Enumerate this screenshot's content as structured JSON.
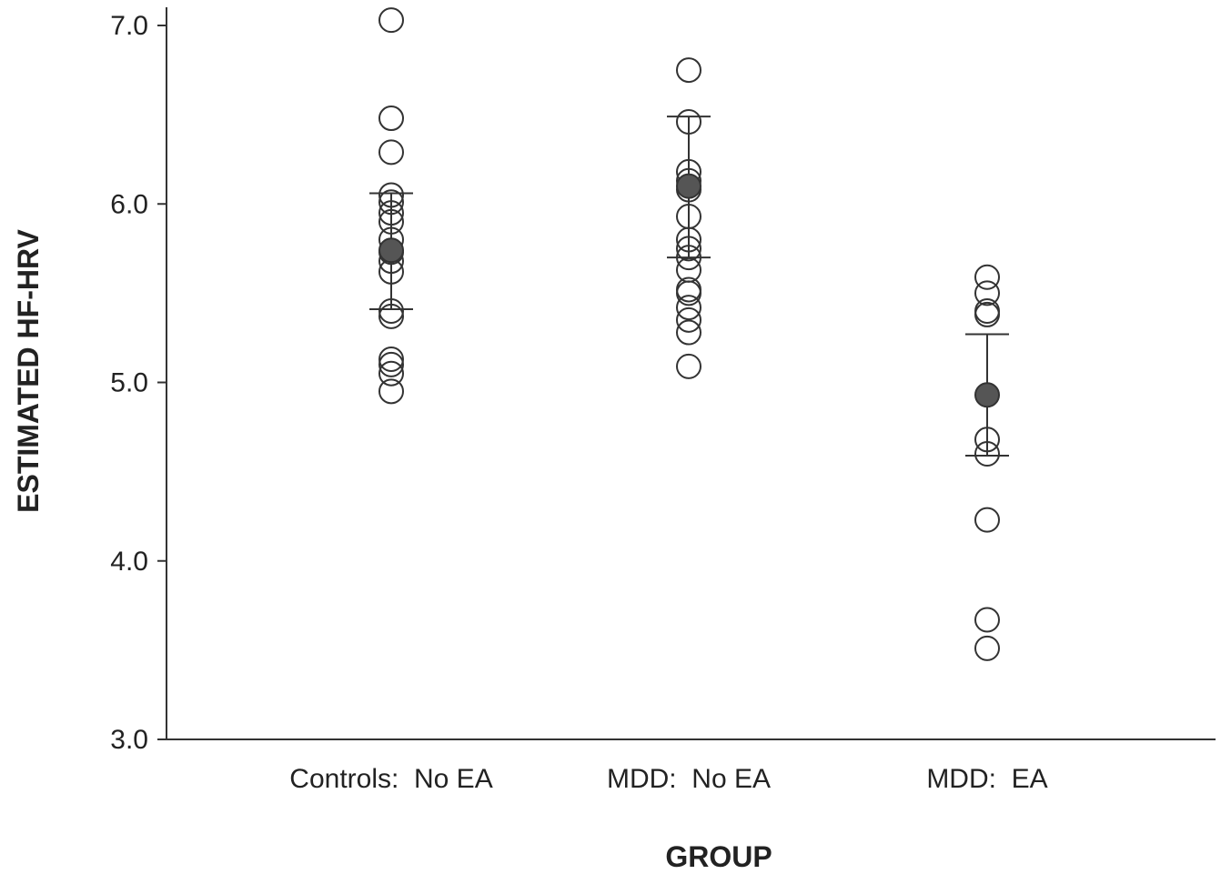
{
  "chart_data": {
    "type": "scatter",
    "title": "",
    "xlabel": "GROUP",
    "ylabel": "ESTIMATED HF-HRV",
    "ylim": [
      3.0,
      7.0
    ],
    "yticks": [
      "3.0",
      "4.0",
      "5.0",
      "6.0",
      "7.0"
    ],
    "grid": false,
    "categories": [
      "Controls:  No EA",
      "MDD:  No EA",
      "MDD:  EA"
    ],
    "groups": [
      {
        "category": "Controls:  No EA",
        "points": [
          7.03,
          6.48,
          6.29,
          6.05,
          6.01,
          5.95,
          5.9,
          5.8,
          5.73,
          5.68,
          5.62,
          5.4,
          5.37,
          5.13,
          5.1,
          5.05,
          4.95
        ],
        "mean": 5.74,
        "error_upper": 6.06,
        "error_lower": 5.41
      },
      {
        "category": "MDD:  No EA",
        "points": [
          6.75,
          6.46,
          6.18,
          6.13,
          6.08,
          5.93,
          5.8,
          5.75,
          5.7,
          5.63,
          5.52,
          5.5,
          5.42,
          5.35,
          5.28,
          5.09
        ],
        "mean": 6.1,
        "error_upper": 6.49,
        "error_lower": 5.7
      },
      {
        "category": "MDD:  EA",
        "points": [
          5.59,
          5.5,
          5.4,
          5.38,
          4.68,
          4.6,
          4.23,
          3.67,
          3.51
        ],
        "mean": 4.93,
        "error_upper": 5.27,
        "error_lower": 4.59
      }
    ],
    "colors": {
      "axis": "#333333",
      "open_point_stroke": "#333333",
      "mean_fill": "#555555"
    }
  }
}
